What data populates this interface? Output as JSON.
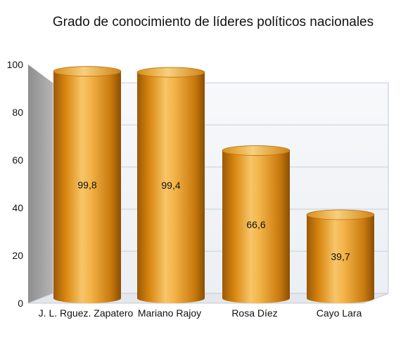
{
  "chart_data": {
    "type": "bar",
    "title": "Grado de conocimiento de líderes políticos nacionales",
    "categories": [
      "J. L. Rguez. Zapatero",
      "Mariano Rajoy",
      "Rosa Díez",
      "Cayo Lara"
    ],
    "values": [
      99.8,
      99.4,
      66.6,
      39.7
    ],
    "value_labels": [
      "99,8",
      "99,4",
      "66,6",
      "39,7"
    ],
    "ylim": [
      0,
      100
    ],
    "yticks": [
      0,
      20,
      40,
      60,
      80,
      100
    ],
    "grid": true,
    "legend": "none",
    "colors": {
      "bar_light": "#f6c56a",
      "bar_mid": "#d98a12",
      "bar_dark": "#8a4e05",
      "wall": "#f2f4f7",
      "side_wall": "#9a9a9a",
      "grid": "#c9ced6"
    }
  }
}
